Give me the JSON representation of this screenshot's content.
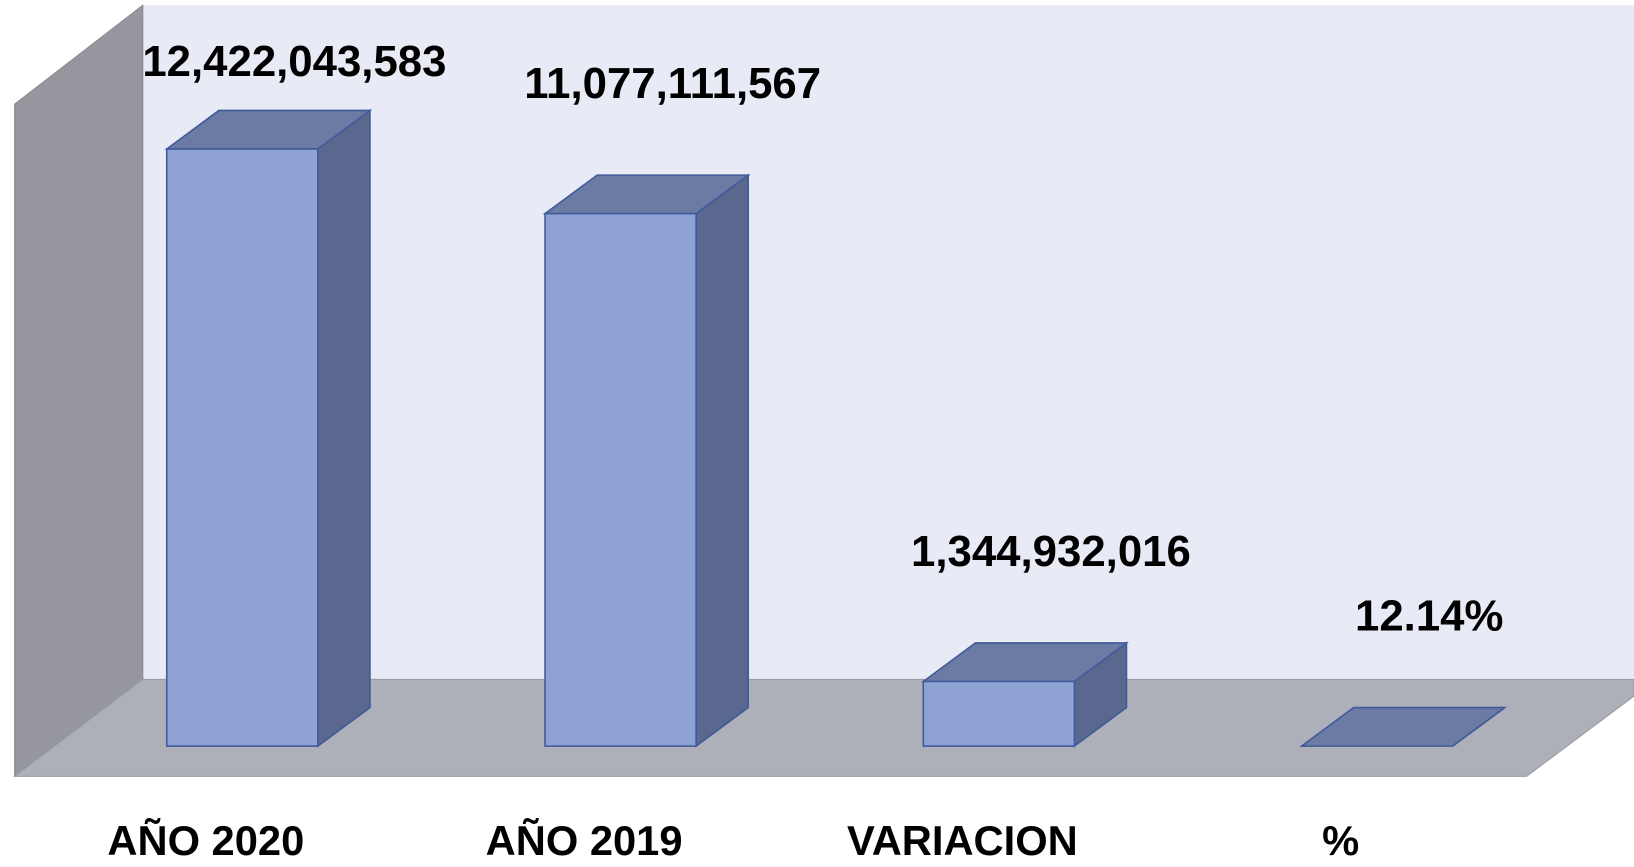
{
  "chart_data": {
    "type": "bar3d",
    "categories": [
      "AÑO 2020",
      "AÑO 2019",
      "VARIACION",
      "%"
    ],
    "values": [
      12422043583,
      11077111567,
      1344932016,
      12.14
    ],
    "value_labels": [
      "12,422,043,583",
      "11,077,111,567",
      "1,344,932,016",
      "12.14%"
    ],
    "color": "#8fa2d6"
  }
}
